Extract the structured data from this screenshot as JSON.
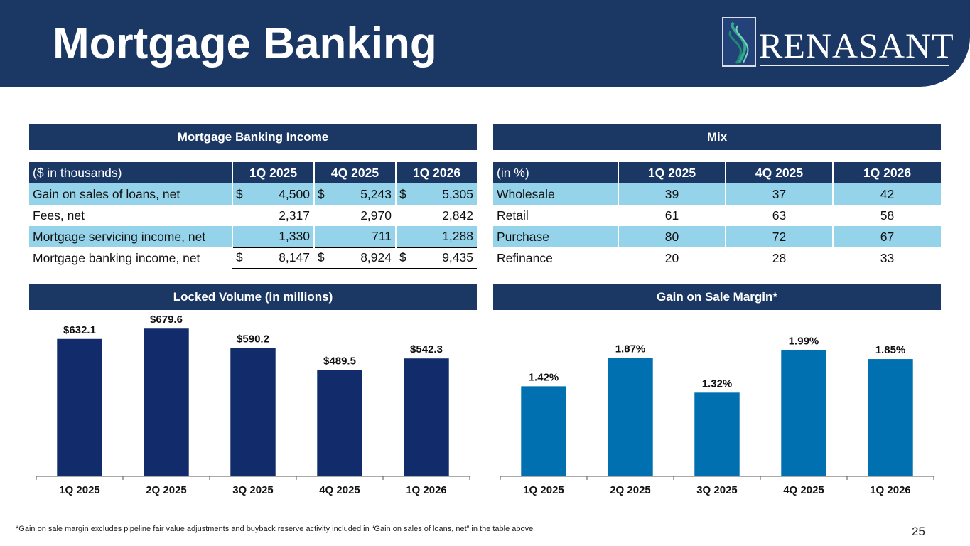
{
  "header": {
    "title": "Mortgage Banking",
    "logo_text": "RENASANT"
  },
  "income": {
    "section_title": "Mortgage Banking Income",
    "unit_label": "($ in thousands)",
    "columns": [
      "1Q 2025",
      "4Q 2025",
      "1Q 2026"
    ],
    "rows": [
      {
        "label": "Gain on sales of loans, net",
        "currency": "$",
        "values": [
          "4,500",
          "5,243",
          "5,305"
        ],
        "shaded": true
      },
      {
        "label": "Fees, net",
        "currency": "",
        "values": [
          "2,317",
          "2,970",
          "2,842"
        ],
        "shaded": false
      },
      {
        "label": "Mortgage servicing income, net",
        "currency": "",
        "values": [
          "1,330",
          "711",
          "1,288"
        ],
        "shaded": true
      },
      {
        "label": "Mortgage banking income, net",
        "currency": "$",
        "values": [
          "8,147",
          "8,924",
          "9,435"
        ],
        "shaded": false
      }
    ]
  },
  "mix": {
    "section_title": "Mix",
    "unit_label": "(in %)",
    "columns": [
      "1Q 2025",
      "4Q 2025",
      "1Q 2026"
    ],
    "rows": [
      {
        "label": "Wholesale",
        "values": [
          "39",
          "37",
          "42"
        ],
        "shaded": true
      },
      {
        "label": "Retail",
        "values": [
          "61",
          "63",
          "58"
        ],
        "shaded": false
      },
      {
        "label": "Purchase",
        "values": [
          "80",
          "72",
          "67"
        ],
        "shaded": true
      },
      {
        "label": "Refinance",
        "values": [
          "20",
          "28",
          "33"
        ],
        "shaded": false
      }
    ]
  },
  "chart_data": [
    {
      "type": "bar",
      "title": "Locked Volume (in millions)",
      "categories": [
        "1Q 2025",
        "2Q 2025",
        "3Q 2025",
        "4Q 2025",
        "1Q 2026"
      ],
      "values": [
        632.1,
        679.6,
        590.2,
        489.5,
        542.3
      ],
      "data_labels": [
        "$632.1",
        "$679.6",
        "$590.2",
        "$489.5",
        "$542.3"
      ],
      "xlabel": "",
      "ylabel": "",
      "ylim": [
        0,
        700
      ],
      "grid": false,
      "color": "#112b6b"
    },
    {
      "type": "bar",
      "title": "Gain on Sale Margin*",
      "categories": [
        "1Q 2025",
        "2Q 2025",
        "3Q 2025",
        "4Q 2025",
        "1Q 2026"
      ],
      "values": [
        1.42,
        1.87,
        1.32,
        1.99,
        1.85
      ],
      "data_labels": [
        "1.42%",
        "1.87%",
        "1.32%",
        "1.99%",
        "1.85%"
      ],
      "xlabel": "",
      "ylabel": "",
      "ylim": [
        0,
        2.4
      ],
      "grid": false,
      "color": "#0070b0"
    }
  ],
  "footer": {
    "footnote": "*Gain on sale margin excludes pipeline fair value adjustments and buyback reserve activity included in “Gain on sales of loans, net” in the table above",
    "page_number": "25"
  }
}
